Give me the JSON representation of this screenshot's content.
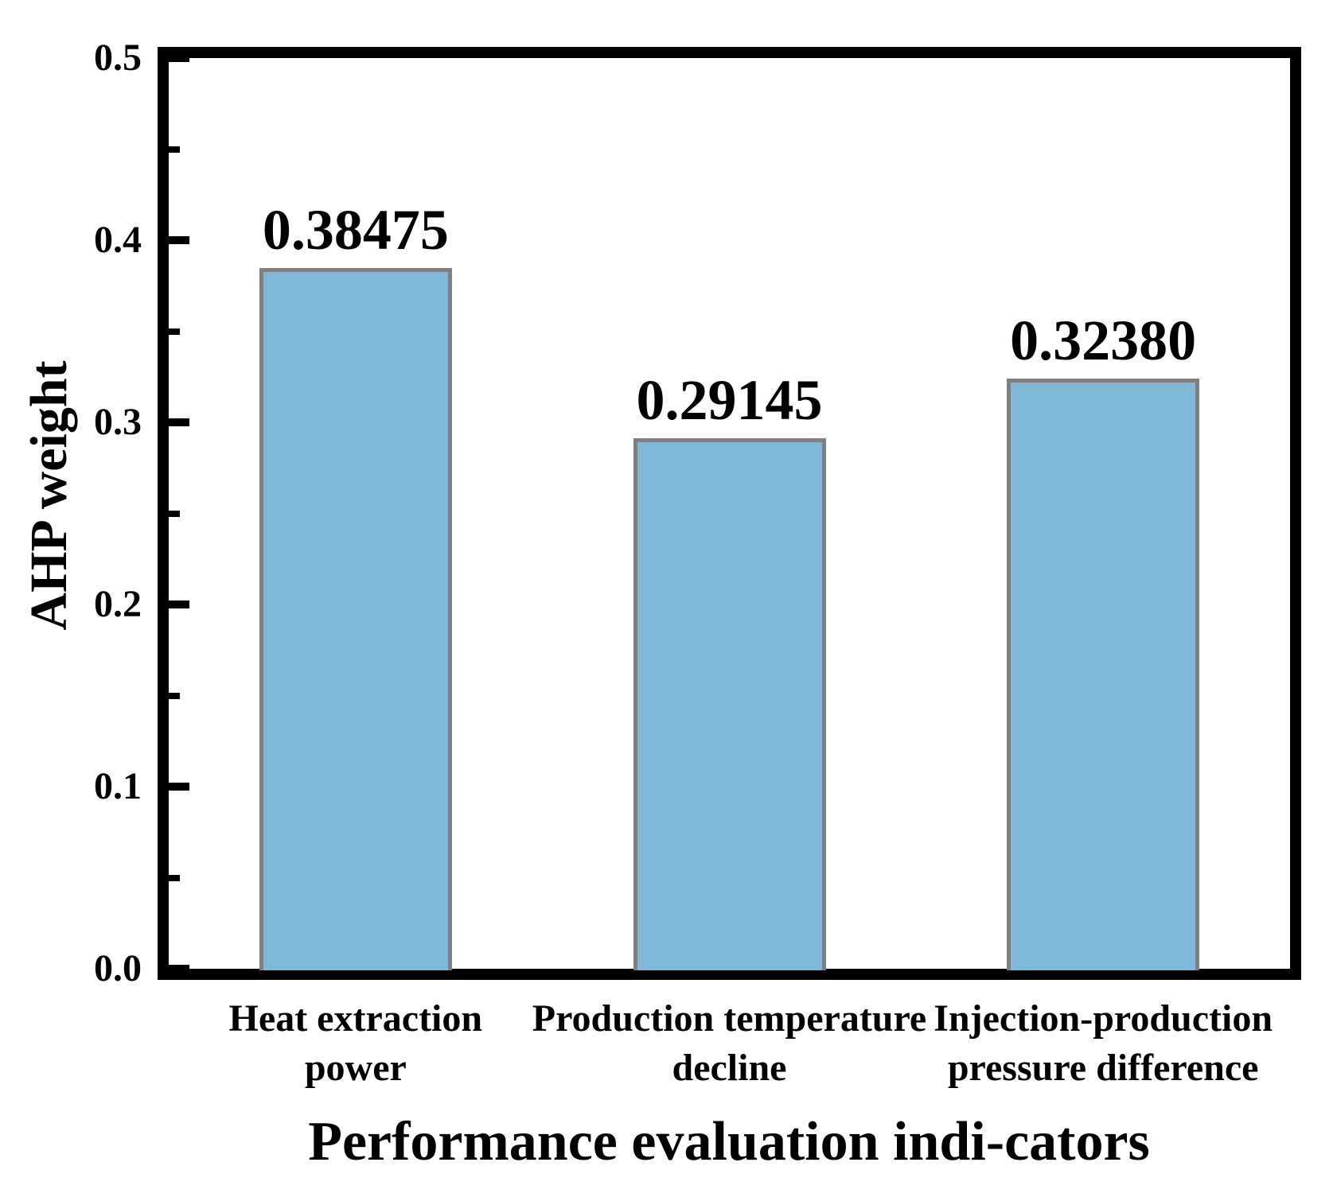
{
  "chart_data": {
    "type": "bar",
    "title": "",
    "xlabel": "Performance evaluation indi-cators",
    "ylabel": "AHP weight",
    "categories": [
      {
        "line1": "Heat extraction",
        "line2": "power"
      },
      {
        "line1": "Production temperature",
        "line2": "decline"
      },
      {
        "line1": "Injection-production",
        "line2": "pressure difference"
      }
    ],
    "values": [
      0.38475,
      0.29145,
      0.3238
    ],
    "value_labels": [
      "0.38475",
      "0.29145",
      "0.32380"
    ],
    "ylim": [
      0.0,
      0.5
    ],
    "yticks": [
      0.0,
      0.1,
      0.2,
      0.3,
      0.4,
      0.5
    ],
    "ytick_labels": [
      "0.0",
      "0.1",
      "0.2",
      "0.3",
      "0.4",
      "0.5"
    ],
    "minor_ytick_step": 0.05,
    "grid": false,
    "legend": null,
    "ticks_position": "left-inward",
    "colors": {
      "bar_fill": "#80B8D9",
      "bar_edge": "#7F7F7F",
      "axis": "#000000",
      "text": "#000000",
      "background": "#FFFFFF"
    }
  }
}
